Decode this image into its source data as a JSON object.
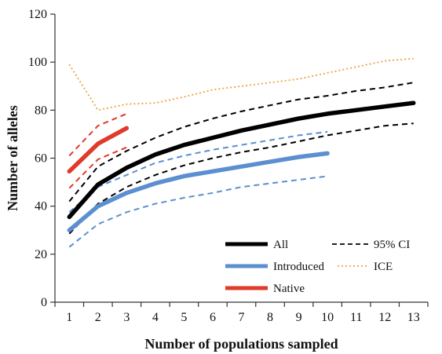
{
  "chart_data": {
    "type": "line",
    "title": "",
    "xlabel": "Number of populations sampled",
    "ylabel": "Number of alleles",
    "xlim": [
      0.5,
      13.5
    ],
    "ylim": [
      0,
      120
    ],
    "x_ticks": [
      "1",
      "2",
      "3",
      "4",
      "5",
      "6",
      "7",
      "8",
      "9",
      "10",
      "11",
      "12",
      "13"
    ],
    "y_ticks": [
      "0",
      "20",
      "40",
      "60",
      "80",
      "100",
      "120"
    ],
    "grid": false,
    "legend_position": "bottom-right",
    "legend": [
      {
        "label": "All",
        "color": "#000000",
        "style": "solid"
      },
      {
        "label": "95% CI",
        "color": "#000000",
        "style": "dashed"
      },
      {
        "label": "Introduced",
        "color": "#5b8fcf",
        "style": "solid"
      },
      {
        "label": "ICE",
        "color": "#f0a040",
        "style": "dotted"
      },
      {
        "label": "Native",
        "color": "#e03a2b",
        "style": "solid"
      }
    ],
    "series": [
      {
        "name": "All",
        "color": "#000000",
        "style": "solid",
        "x": [
          1,
          2,
          3,
          4,
          5,
          6,
          7,
          8,
          9,
          10,
          11,
          12,
          13
        ],
        "values": [
          35.5,
          49,
          56,
          61.5,
          65.5,
          68.5,
          71.5,
          74,
          76.5,
          78.5,
          80,
          81.5,
          83
        ]
      },
      {
        "name": "",
        "color": "#000000",
        "style": "dashed",
        "x": [
          1,
          2,
          3,
          4,
          5,
          6,
          7,
          8,
          9,
          10,
          11,
          12,
          13
        ],
        "values": [
          42,
          56.5,
          63,
          68.5,
          73,
          76.5,
          79.5,
          82,
          84.5,
          86,
          88,
          89.5,
          91.5
        ]
      },
      {
        "name": "",
        "color": "#000000",
        "style": "dashed",
        "x": [
          1,
          2,
          3,
          4,
          5,
          6,
          7,
          8,
          9,
          10,
          11,
          12,
          13
        ],
        "values": [
          28.5,
          41,
          48,
          53,
          57,
          60,
          62.5,
          64.5,
          67,
          69.5,
          71.5,
          73.5,
          74.5
        ]
      },
      {
        "name": "Introduced",
        "color": "#5b8fcf",
        "style": "solid",
        "x": [
          1,
          2,
          3,
          4,
          5,
          6,
          7,
          8,
          9,
          10
        ],
        "values": [
          30,
          40,
          45.5,
          49.5,
          52.5,
          54.5,
          56.5,
          58.5,
          60.5,
          62
        ]
      },
      {
        "name": "",
        "color": "#5b8fcf",
        "style": "dashed",
        "x": [
          1,
          2,
          3,
          4,
          5,
          6,
          7,
          8,
          9,
          10
        ],
        "values": [
          37.5,
          48,
          53,
          58,
          61,
          63.5,
          65.5,
          67.5,
          69.5,
          71
        ]
      },
      {
        "name": "",
        "color": "#5b8fcf",
        "style": "dashed",
        "x": [
          1,
          2,
          3,
          4,
          5,
          6,
          7,
          8,
          9,
          10
        ],
        "values": [
          23,
          32.5,
          37.5,
          41,
          43.5,
          45.5,
          48,
          49.5,
          51,
          52.5
        ]
      },
      {
        "name": "ICE",
        "color": "#f0a040",
        "style": "dotted",
        "x": [
          1,
          2,
          3,
          4,
          5,
          6,
          7,
          8,
          9,
          10,
          11,
          12,
          13
        ],
        "values": [
          99,
          80,
          82.5,
          83,
          85.5,
          88.5,
          90,
          91.5,
          93,
          95.5,
          98,
          100.5,
          101.5
        ]
      },
      {
        "name": "Native",
        "color": "#e03a2b",
        "style": "solid",
        "x": [
          1,
          2,
          3
        ],
        "values": [
          54.5,
          66,
          72.5
        ]
      },
      {
        "name": "",
        "color": "#e03a2b",
        "style": "dashed",
        "x": [
          1,
          2,
          3
        ],
        "values": [
          61,
          73.5,
          78.5
        ]
      },
      {
        "name": "",
        "color": "#e03a2b",
        "style": "dashed",
        "x": [
          1,
          2,
          3
        ],
        "values": [
          47.5,
          59.5,
          64.5
        ]
      }
    ]
  }
}
